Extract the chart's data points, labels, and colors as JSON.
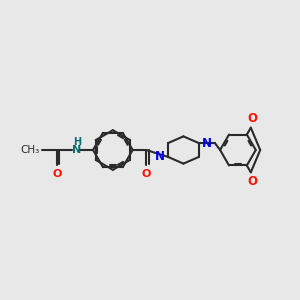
{
  "bg_color": "#e8e8e8",
  "bond_color": "#2a2a2a",
  "N_color": "#0000ee",
  "O_color": "#ff1100",
  "NH_color": "#007070",
  "H_color": "#007070",
  "lw": 1.5,
  "fs": 7.5,
  "figsize": [
    3.0,
    3.0
  ],
  "dpi": 100,
  "xlim": [
    0,
    12
  ],
  "ylim": [
    2,
    9
  ]
}
